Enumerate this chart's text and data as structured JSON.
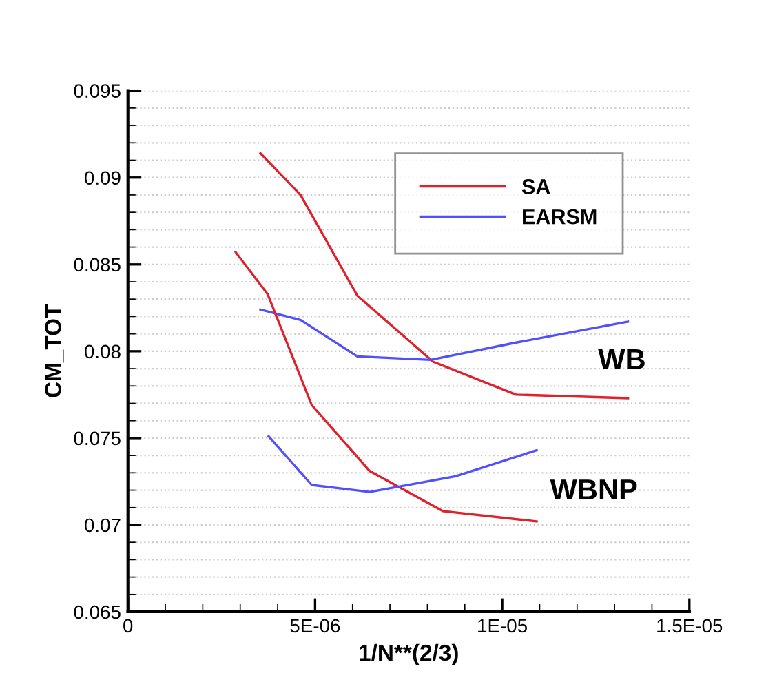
{
  "chart_data": {
    "type": "line",
    "xlabel": "1/N**(2/3)",
    "ylabel": "CM_TOT",
    "xlim": [
      0,
      1.5e-05
    ],
    "xticks": [
      0,
      {
        "value": 5e-06,
        "label": "5E-06"
      },
      {
        "value": 1e-05,
        "label": "1E-05"
      },
      {
        "value": 1.5e-05,
        "label": "1.5E-05"
      }
    ],
    "ylim": [
      0.065,
      0.095
    ],
    "yticks": [
      0.065,
      0.07,
      0.075,
      0.08,
      0.085,
      0.09,
      0.095
    ],
    "grid": "y",
    "legend": "top right",
    "marker": "none",
    "line_style": "solid",
    "series": [
      {
        "name": "SA",
        "color": "#e0202a",
        "x": [
          3.54e-06,
          4.61e-06,
          6.13e-06,
          8.15e-06,
          1.037e-05,
          1.336e-05
        ],
        "values": [
          0.0914,
          0.089,
          0.0832,
          0.0794,
          0.0775,
          0.0773
        ]
      },
      {
        "name": "EARSM",
        "color": "#5050ff",
        "x": [
          3.54e-06,
          4.61e-06,
          6.13e-06,
          8.08e-06,
          1.037e-05,
          1.336e-05
        ],
        "values": [
          0.0824,
          0.0818,
          0.0797,
          0.0795,
          0.0805,
          0.0817
        ]
      },
      {
        "color": "#e0202a",
        "x": [
          2.88e-06,
          3.73e-06,
          4.91e-06,
          6.46e-06,
          8.41e-06,
          1.092e-05
        ],
        "values": [
          0.0857,
          0.0833,
          0.0769,
          0.0731,
          0.0708,
          0.0702
        ]
      },
      {
        "color": "#5050ff",
        "x": [
          3.76e-06,
          4.91e-06,
          6.46e-06,
          8.75e-06,
          1.092e-05
        ],
        "values": [
          0.0751,
          0.0723,
          0.0719,
          0.0728,
          0.0743
        ]
      }
    ],
    "annotations": [
      "WB",
      "WBNP"
    ]
  }
}
